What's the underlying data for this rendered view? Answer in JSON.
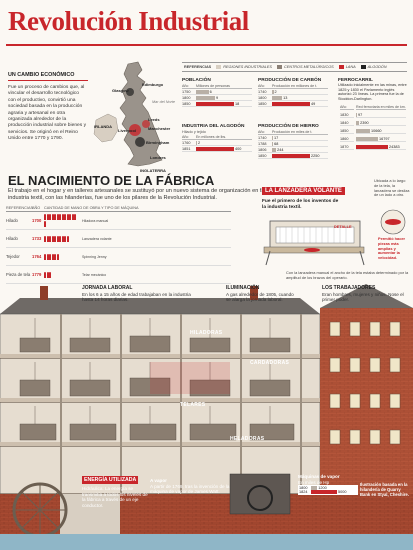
{
  "title": "Revolución Industrial",
  "economic": {
    "heading": "UN CAMBIO ECONÓMICO",
    "body": "Fue un proceso de cambios que, al vincular el desarrollo tecnológico con el productivo, convirtió una sociedad basada en la producción agraria y artesanal en otra organizada alrededor de la producción industrial sobre bienes y servicios. Se originó en el Reino Unido entre 1770 y 1790."
  },
  "map": {
    "labels": [
      "Glasgow",
      "Edimburgo",
      "Mar del Norte",
      "Manchester",
      "Leeds",
      "Liverpool",
      "Birmingham",
      "Londres",
      "IRLANDA",
      "INGLATERRA"
    ]
  },
  "legend": {
    "items": [
      "REFERENCIAS",
      "REGIONES INDUSTRIALES",
      "CENTROS METALÚRGICOS",
      "LANA",
      "ALGODÓN"
    ],
    "colors": [
      "#ffffff",
      "#d8cfc2",
      "#8c8177",
      "#c8262b",
      "#222222"
    ]
  },
  "stats": {
    "poblacion": {
      "title": "POBLACIÓN",
      "col1": "Año",
      "col2": "Millones de personas",
      "rows": [
        {
          "year": "1750",
          "value": 6
        },
        {
          "year": "1800",
          "value": 9
        },
        {
          "year": "1850",
          "value": 18
        }
      ]
    },
    "carbon": {
      "title": "PRODUCCIÓN DE CARBÓN",
      "col1": "Año",
      "col2": "Producción en millones de t.",
      "rows": [
        {
          "year": "1740",
          "value": 2
        },
        {
          "year": "1800",
          "value": 13
        },
        {
          "year": "1850",
          "value": 49
        }
      ]
    },
    "algodon": {
      "title": "INDUSTRIA DEL ALGODÓN",
      "sub": "Hilado y tejido",
      "col1": "Año",
      "col2": "En millones de lbs.",
      "rows": [
        {
          "year": "1760",
          "value": 2
        },
        {
          "year": "1851",
          "value": 400
        }
      ]
    },
    "hierro": {
      "title": "PRODUCCIÓN DE HIERRO",
      "col1": "Año",
      "col2": "Producción en miles de t.",
      "rows": [
        {
          "year": "1740",
          "value": 17
        },
        {
          "year": "1788",
          "value": 68
        },
        {
          "year": "1806",
          "value": 244
        },
        {
          "year": "1850",
          "value": 2250
        }
      ]
    },
    "ferrocarril": {
      "title": "FERROCARRIL",
      "sub": "Utilizado inicialmente en las minas, entre 1825 y 1830 el Parlamento inglés autorizó 23 líneas. La primera fue la de Stockton-Darlington.",
      "col1": "Año",
      "col2": "Red ferroviaria en miles de km.",
      "rows": [
        {
          "year": "1830",
          "value": 97
        },
        {
          "year": "1840",
          "value": 2390
        },
        {
          "year": "1850",
          "value": 10660
        },
        {
          "year": "1860",
          "value": 16797
        },
        {
          "year": "1870",
          "value": 24383
        }
      ]
    }
  },
  "fabrica": {
    "title": "EL NACIMIENTO DE LA FÁBRICA",
    "body": "El trabajo en el hogar y en talleres artesanales se sustituyó por un nuevo sistema de organización en fábricas. La industria textil, con las hilanderías, fue uno de los pilares de la Revolución Industrial.",
    "cmp_headers": [
      "REFERENCIAS",
      "AÑO",
      "CANTIDAD DE MANO DE OBRA Y TIPO DE MÁQUINA"
    ],
    "rows": [
      {
        "name": "Hilado",
        "year": "1700",
        "workers": 14,
        "machine": "Hiladora manual"
      },
      {
        "name": "Hilado",
        "year": "1733",
        "workers": 10,
        "machine": "Lanzadera volante"
      },
      {
        "name": "Tejedor",
        "year": "1764",
        "workers": 6,
        "machine": "Spinning Jenny"
      },
      {
        "name": "Pieza de tela",
        "year": "1779",
        "workers": 3,
        "machine": "Telar mecánico"
      }
    ]
  },
  "lanzadera": {
    "title": "LA LANZADERA VOLANTE",
    "sub": "Fue el primero de los inventos de la industria textil.",
    "note1": "Ubicada a lo largo de la tela, la lanzadera se desliza de un lado a otro.",
    "detalle": "DETALLE",
    "note2": "Permitió hacer piezas más amplias y aumentar la velocidad.",
    "note3": "Con la lanzadera manual el ancho de la tela estaba determinado por la amplitud de los brazos del operario."
  },
  "building": {
    "jornada": {
      "title": "JORNADA LABORAL",
      "text": "En los 6 a 15 años de edad trabajaban en la industria hasta 14 horas diarias."
    },
    "iluminacion": {
      "title": "ILUMINACIÓN",
      "text": "A gas alrededor de 1805, cuando se alarga la jornada laboral."
    },
    "trabajadores": {
      "title": "LOS TRABAJADORES",
      "text": "Eran hombres, mujeres y niños. Nose el primer poder."
    },
    "floors": [
      "CARDADORAS",
      "TELARES",
      "HELADORAS",
      "HILADORAS"
    ],
    "energia": {
      "title": "ENERGÍA UTILIZADA",
      "text": "Hidráulica: La energía se transmitía a todos los niveles de la fábrica a través de un eje conductor."
    },
    "vapor": {
      "title": "A vapor",
      "text": "A partir de 1769, tras la invención de la máquina de vapor de James Watt."
    },
    "maquinas": {
      "title": "Máquinas de vapor",
      "sub": "En miles de Hp",
      "rows": [
        {
          "year": "1800",
          "value": 1200
        },
        {
          "year": "1824",
          "value": 5000
        }
      ]
    },
    "credit": "Ilustración basada en la hilandería de Quarry Bank en Styal, Cheshire."
  }
}
